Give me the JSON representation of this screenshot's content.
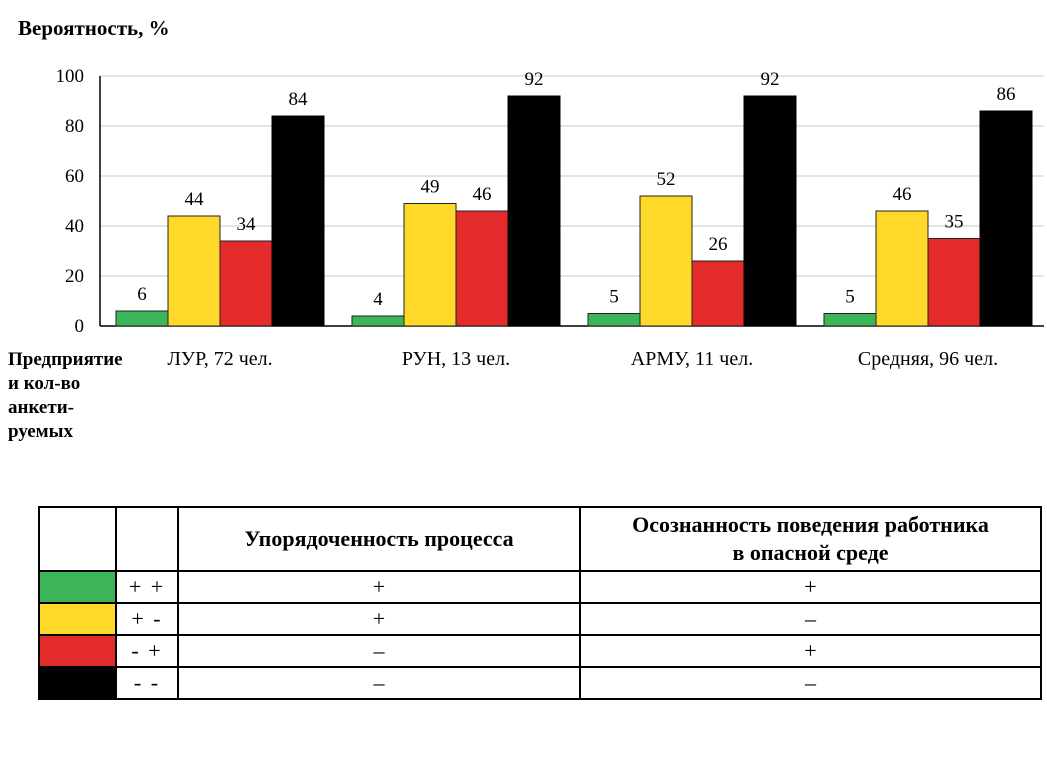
{
  "chart_data": {
    "type": "bar",
    "ylabel": "Вероятность,  %",
    "xlabel": "Предприятие\nи кол-во\nанкети-\nруемых",
    "ylim": [
      0,
      100
    ],
    "yticks": [
      0,
      20,
      40,
      60,
      80,
      100
    ],
    "grid": true,
    "categories": [
      "ЛУР, 72 чел.",
      "РУН, 13 чел.",
      "АРМУ, 11 чел.",
      "Средняя, 96 чел."
    ],
    "series": [
      {
        "name": "+ +",
        "color": "#3cb45a",
        "values": [
          6,
          4,
          5,
          5
        ]
      },
      {
        "name": "+ -",
        "color": "#ffd92a",
        "values": [
          44,
          49,
          52,
          46
        ]
      },
      {
        "name": "- +",
        "color": "#e32b2b",
        "values": [
          34,
          46,
          26,
          35
        ]
      },
      {
        "name": "- -",
        "color": "#000000",
        "values": [
          84,
          92,
          92,
          86
        ]
      }
    ]
  },
  "legend_table": {
    "header_a": "Упорядоченность процесса",
    "header_b": "Осознанность поведения работника\nв опасной среде",
    "rows": [
      {
        "color": "#3cb45a",
        "code": "+ +",
        "a": "+",
        "b": "+"
      },
      {
        "color": "#ffd92a",
        "code": "+ -",
        "a": "+",
        "b": "–"
      },
      {
        "color": "#e32b2b",
        "code": "- +",
        "a": "–",
        "b": "+"
      },
      {
        "color": "#000000",
        "code": "- -",
        "a": "–",
        "b": "–"
      }
    ]
  }
}
